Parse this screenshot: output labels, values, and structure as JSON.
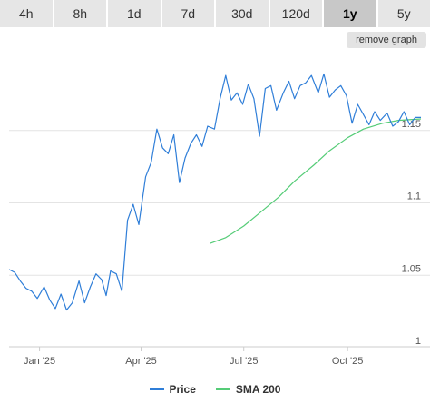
{
  "toolbar": {
    "tabs": [
      "4h",
      "8h",
      "1d",
      "7d",
      "30d",
      "120d",
      "1y",
      "5y"
    ],
    "active_tab": "1y",
    "remove_label": "remove graph"
  },
  "legend": {
    "items": [
      {
        "label": "Price",
        "color": "#2f7ed8"
      },
      {
        "label": "SMA 200",
        "color": "#55cc77"
      }
    ]
  },
  "chart_data": {
    "type": "line",
    "title": "",
    "xlabel": "",
    "ylabel": "",
    "x_ticks": [
      "Jan '25",
      "Apr '25",
      "Jul '25",
      "Oct '25"
    ],
    "y_ticks": [
      "1",
      "1.05",
      "1.1",
      "1.15"
    ],
    "ylim": [
      1.0,
      1.2
    ],
    "xlim": [
      "2024-12-05",
      "2025-12-05"
    ],
    "grid": true,
    "legend_position": "bottom-center",
    "series": [
      {
        "name": "Price",
        "color": "#2f7ed8",
        "x": [
          "2024-12-05",
          "2024-12-10",
          "2024-12-15",
          "2024-12-20",
          "2024-12-25",
          "2024-12-30",
          "2025-01-05",
          "2025-01-10",
          "2025-01-15",
          "2025-01-20",
          "2025-01-25",
          "2025-01-30",
          "2025-02-05",
          "2025-02-10",
          "2025-02-15",
          "2025-02-20",
          "2025-02-25",
          "2025-03-01",
          "2025-03-05",
          "2025-03-10",
          "2025-03-15",
          "2025-03-20",
          "2025-03-25",
          "2025-03-30",
          "2025-04-05",
          "2025-04-10",
          "2025-04-15",
          "2025-04-20",
          "2025-04-25",
          "2025-04-30",
          "2025-05-05",
          "2025-05-10",
          "2025-05-15",
          "2025-05-20",
          "2025-05-25",
          "2025-05-30",
          "2025-06-05",
          "2025-06-10",
          "2025-06-15",
          "2025-06-20",
          "2025-06-25",
          "2025-06-30",
          "2025-07-05",
          "2025-07-10",
          "2025-07-15",
          "2025-07-20",
          "2025-07-25",
          "2025-07-30",
          "2025-08-05",
          "2025-08-10",
          "2025-08-15",
          "2025-08-20",
          "2025-08-25",
          "2025-08-30",
          "2025-09-05",
          "2025-09-10",
          "2025-09-15",
          "2025-09-20",
          "2025-09-25",
          "2025-09-30",
          "2025-10-05",
          "2025-10-10",
          "2025-10-15",
          "2025-10-20",
          "2025-10-25",
          "2025-10-30",
          "2025-11-05",
          "2025-11-10",
          "2025-11-15",
          "2025-11-20",
          "2025-11-25",
          "2025-11-30",
          "2025-12-05"
        ],
        "values": [
          1.054,
          1.052,
          1.046,
          1.041,
          1.039,
          1.034,
          1.042,
          1.033,
          1.027,
          1.037,
          1.026,
          1.031,
          1.046,
          1.031,
          1.042,
          1.051,
          1.047,
          1.036,
          1.053,
          1.051,
          1.039,
          1.088,
          1.099,
          1.085,
          1.118,
          1.128,
          1.151,
          1.138,
          1.134,
          1.147,
          1.114,
          1.131,
          1.141,
          1.147,
          1.139,
          1.153,
          1.151,
          1.172,
          1.188,
          1.171,
          1.176,
          1.168,
          1.182,
          1.172,
          1.146,
          1.179,
          1.181,
          1.164,
          1.176,
          1.184,
          1.172,
          1.181,
          1.183,
          1.188,
          1.176,
          1.189,
          1.173,
          1.178,
          1.181,
          1.174,
          1.155,
          1.168,
          1.161,
          1.154,
          1.163,
          1.157,
          1.162,
          1.153,
          1.156,
          1.163,
          1.154,
          1.159,
          1.159
        ]
      },
      {
        "name": "SMA 200",
        "color": "#55cc77",
        "x": [
          "2025-06-01",
          "2025-06-15",
          "2025-07-01",
          "2025-07-15",
          "2025-08-01",
          "2025-08-15",
          "2025-09-01",
          "2025-09-15",
          "2025-10-01",
          "2025-10-15",
          "2025-11-01",
          "2025-11-15",
          "2025-12-05"
        ],
        "values": [
          1.072,
          1.076,
          1.084,
          1.093,
          1.104,
          1.115,
          1.126,
          1.136,
          1.145,
          1.151,
          1.155,
          1.157,
          1.158
        ]
      }
    ]
  }
}
